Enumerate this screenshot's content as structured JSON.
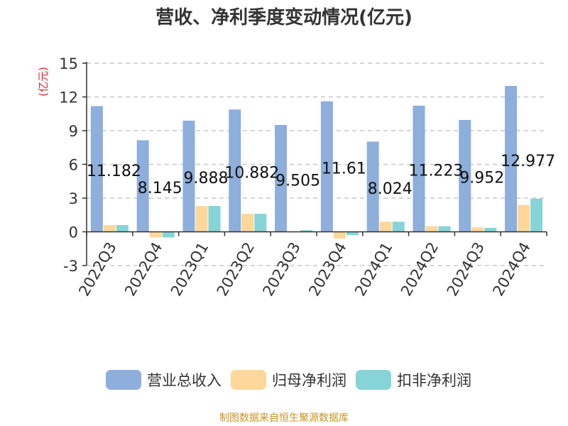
{
  "chart_data": {
    "type": "bar",
    "title": "营收、净利季度变动情况(亿元)",
    "ylabel": "(亿元)",
    "xlabel": "",
    "ylim": [
      -3,
      15
    ],
    "yticks": [
      -3,
      0,
      3,
      6,
      9,
      12,
      15
    ],
    "grid": true,
    "legend_position": "bottom",
    "categories": [
      "2022Q3",
      "2022Q4",
      "2023Q1",
      "2023Q2",
      "2023Q3",
      "2023Q4",
      "2024Q1",
      "2024Q2",
      "2024Q3",
      "2024Q4"
    ],
    "series": [
      {
        "name": "营业总收入",
        "color": "#8eaedb",
        "values": [
          11.182,
          8.145,
          9.888,
          10.882,
          9.505,
          11.61,
          8.024,
          11.223,
          9.952,
          12.977
        ],
        "labels": [
          "11.182",
          "8.145",
          "9.888",
          "10.882",
          "9.505",
          "11.61",
          "8.024",
          "11.223",
          "9.952",
          "12.977"
        ]
      },
      {
        "name": "归母净利润",
        "color": "#fdd89a",
        "values": [
          0.6,
          -0.5,
          2.3,
          1.6,
          0.0,
          -0.6,
          0.9,
          0.5,
          0.4,
          2.4
        ]
      },
      {
        "name": "扣非净利润",
        "color": "#86d4d8",
        "values": [
          0.6,
          -0.5,
          2.3,
          1.6,
          0.15,
          -0.3,
          0.9,
          0.5,
          0.35,
          2.95
        ]
      }
    ],
    "source_note": "制图数据来自恒生聚源数据库"
  },
  "colors": {
    "axis": "#333333",
    "grid": "#c8c8c8",
    "ylabel": "#e0262a",
    "source_note": "#c9941f",
    "title": "#333333"
  }
}
